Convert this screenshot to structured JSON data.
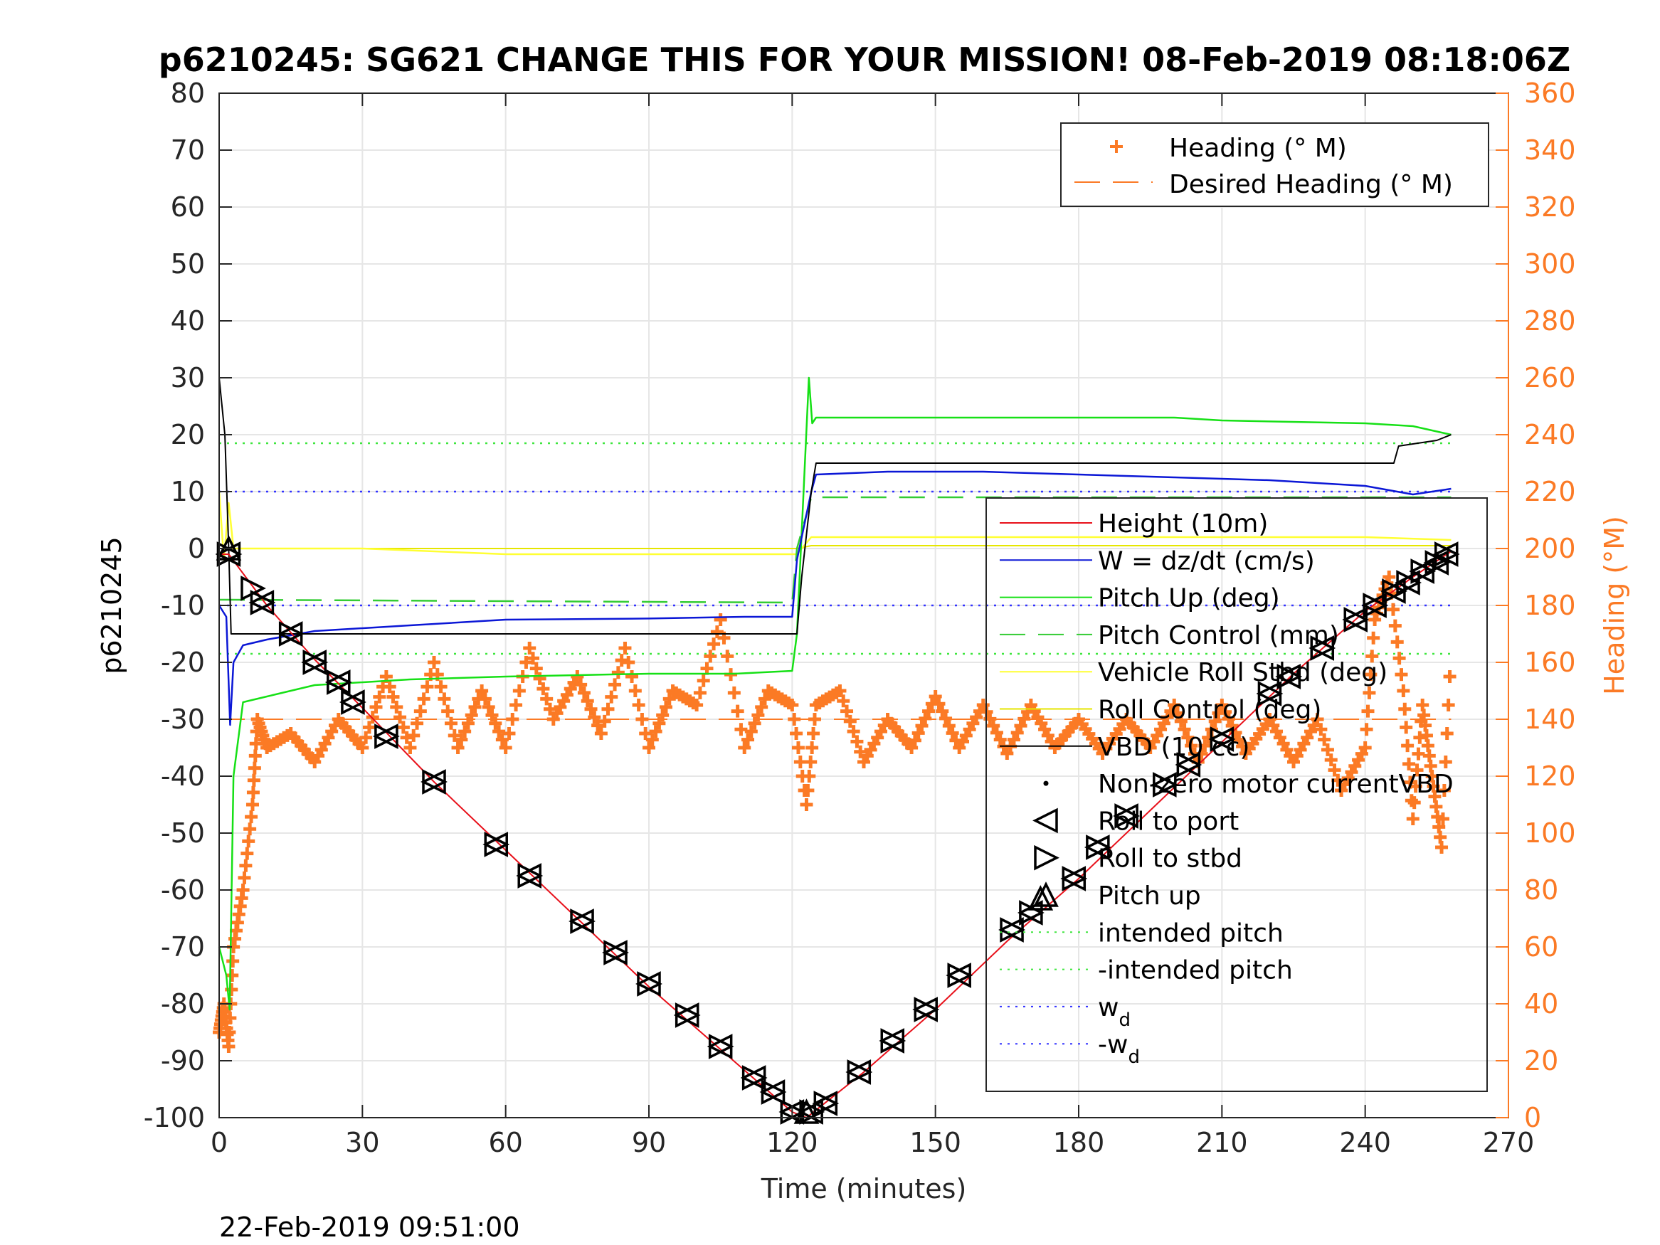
{
  "chart_data": {
    "type": "line",
    "title": "p6210245: SG621 CHANGE THIS FOR YOUR MISSION! 08-Feb-2019 08:18:06Z",
    "xlabel": "Time (minutes)",
    "ylabel": "p6210245",
    "y2label": "Heading (°M)",
    "footer": "22-Feb-2019 09:51:00",
    "xlim": [
      0,
      270
    ],
    "ylim": [
      -100,
      80
    ],
    "y2lim": [
      0,
      360
    ],
    "x_ticks": [
      "0",
      "30",
      "60",
      "90",
      "120",
      "150",
      "180",
      "210",
      "240",
      "270"
    ],
    "y_ticks": [
      "80",
      "70",
      "60",
      "50",
      "40",
      "30",
      "20",
      "10",
      "0",
      "-10",
      "-20",
      "-30",
      "-40",
      "-50",
      "-60",
      "-70",
      "-80",
      "-90",
      "-100"
    ],
    "y2_ticks": [
      "360",
      "340",
      "320",
      "300",
      "280",
      "260",
      "240",
      "220",
      "200",
      "180",
      "160",
      "140",
      "120",
      "100",
      "80",
      "60",
      "40",
      "20",
      "0"
    ],
    "grid": true,
    "colors": {
      "height": "#e8101a",
      "w": "#0b17d6",
      "pitch": "#16e016",
      "pitch_control": "#33cc33",
      "roll": "#ffff33",
      "roll_control": "#e6e600",
      "vbd": "#000000",
      "heading": "#fb7a25",
      "desired_heading": "#fb7a25",
      "intended_pitch": "#3ee63e",
      "wd": "#3333ff"
    },
    "legend_heading": {
      "position": "top-right",
      "entries": [
        "Heading (° M)",
        "Desired Heading (° M)"
      ]
    },
    "legend_main": {
      "position": "right",
      "entries": [
        "Height (10m)",
        "W = dz/dt (cm/s)",
        "Pitch Up (deg)",
        "Pitch Control (mm)",
        "Vehicle Roll Stbd (deg)",
        "Roll Control (deg)",
        "VBD (10 cc)",
        "Non-zero motor currentVBD",
        "Roll to port",
        "Roll to stbd",
        "Pitch up",
        "intended pitch",
        "-intended pitch",
        "w",
        "-w"
      ],
      "subscripts": {
        "13": "d",
        "14": "d"
      }
    },
    "series": [
      {
        "name": "Height (10m)",
        "x": [
          0,
          2,
          10,
          20,
          30,
          45,
          60,
          75,
          90,
          105,
          120,
          123,
          135,
          150,
          165,
          180,
          195,
          210,
          225,
          240,
          250,
          258
        ],
        "y": [
          -1,
          -1,
          -10,
          -19.5,
          -28,
          -41,
          -53,
          -65,
          -77,
          -88,
          -99,
          -100,
          -92,
          -81,
          -69,
          -58,
          -46,
          -34,
          -22,
          -11,
          -5,
          -0.5
        ]
      },
      {
        "name": "W = dz/dt (cm/s)",
        "x": [
          0,
          1.5,
          2.3,
          3,
          5,
          10,
          20,
          40,
          60,
          90,
          110,
          120,
          121,
          124,
          125,
          140,
          160,
          180,
          200,
          220,
          240,
          250,
          258
        ],
        "y": [
          -10,
          -12,
          -31,
          -20,
          -17,
          -16,
          -14.5,
          -13.5,
          -12.5,
          -12.3,
          -12,
          -12,
          -2,
          10,
          13,
          13.5,
          13.5,
          13,
          12.5,
          12,
          11,
          9.5,
          10.5
        ]
      },
      {
        "name": "Pitch Up (deg)",
        "x": [
          0,
          1.5,
          2.2,
          3,
          5,
          10,
          20,
          40,
          60,
          90,
          108,
          120,
          121,
          123.5,
          124.2,
          125,
          140,
          160,
          200,
          210,
          240,
          250,
          258
        ],
        "y": [
          -70,
          -75,
          -81,
          -40,
          -27,
          -26,
          -24,
          -23,
          -22.5,
          -22,
          -22,
          -21.5,
          -15,
          30,
          22,
          23,
          23,
          23,
          23,
          22.5,
          22,
          21.5,
          20
        ]
      },
      {
        "name": "Pitch Control (mm)",
        "x": [
          0,
          2,
          120,
          121,
          124,
          258
        ],
        "y": [
          -9,
          -9,
          -9.5,
          0,
          9,
          9
        ]
      },
      {
        "name": "Vehicle Roll Stbd (deg)",
        "x": [
          0,
          1,
          2,
          3,
          6,
          30,
          60,
          90,
          120,
          121,
          124,
          150,
          180,
          210,
          240,
          258
        ],
        "y": [
          10,
          -2,
          8,
          0,
          0,
          0,
          -1,
          -1,
          -1,
          -1,
          2,
          2,
          2,
          2,
          2,
          1.5
        ]
      },
      {
        "name": "Roll Control (deg)",
        "x": [
          0,
          120,
          121,
          124,
          258
        ],
        "y": [
          0,
          0,
          0,
          0.5,
          0.5
        ]
      },
      {
        "name": "VBD (10 cc)",
        "x": [
          0,
          1.2,
          2,
          2.5,
          121,
          122,
          124,
          125,
          246,
          247,
          255,
          258
        ],
        "y": [
          30,
          20,
          0,
          -15,
          -15,
          -5,
          10,
          15,
          15,
          18,
          19,
          20
        ]
      },
      {
        "name": "Heading (° M)",
        "x": [
          0,
          1,
          2,
          3,
          5,
          7,
          8,
          10,
          15,
          20,
          25,
          30,
          35,
          40,
          45,
          50,
          55,
          60,
          65,
          70,
          75,
          80,
          85,
          90,
          95,
          100,
          105,
          110,
          115,
          120,
          123,
          125,
          130,
          135,
          140,
          145,
          150,
          155,
          160,
          165,
          170,
          175,
          180,
          185,
          190,
          195,
          200,
          205,
          210,
          215,
          220,
          225,
          230,
          235,
          240,
          242,
          245,
          248,
          250,
          252,
          254,
          256,
          258
        ],
        "y": [
          30,
          40,
          25,
          60,
          80,
          110,
          140,
          130,
          135,
          125,
          140,
          130,
          155,
          130,
          160,
          130,
          150,
          130,
          165,
          140,
          155,
          135,
          165,
          130,
          150,
          145,
          175,
          130,
          150,
          145,
          110,
          145,
          150,
          125,
          140,
          130,
          148,
          130,
          145,
          128,
          145,
          130,
          140,
          128,
          140,
          130,
          145,
          125,
          145,
          128,
          140,
          125,
          140,
          115,
          130,
          175,
          190,
          150,
          105,
          145,
          120,
          95,
          165
        ]
      },
      {
        "name": "Desired Heading (° M)",
        "x": [
          0,
          258
        ],
        "y": [
          140,
          140
        ]
      },
      {
        "name": "intended pitch",
        "x": [
          0,
          258
        ],
        "y": [
          18.5,
          18.5
        ]
      },
      {
        "name": "-intended pitch",
        "x": [
          0,
          258
        ],
        "y": [
          -18.5,
          -18.5
        ]
      },
      {
        "name": "w",
        "x": [
          0,
          258
        ],
        "y": [
          10,
          10
        ]
      },
      {
        "name": "-w",
        "x": [
          0,
          258
        ],
        "y": [
          -10,
          -10
        ]
      },
      {
        "name": "Roll to port",
        "x": [
          2,
          9,
          15,
          20,
          25,
          28,
          35,
          45,
          58,
          65,
          76,
          83,
          90,
          98,
          105,
          112,
          116,
          120,
          124,
          127,
          134,
          141,
          148,
          155,
          166,
          170,
          179,
          184,
          190,
          198,
          203,
          210,
          220,
          224,
          231,
          238,
          242,
          246,
          249,
          252,
          255,
          257
        ],
        "y": [
          -1,
          -9.5,
          -15,
          -20,
          -23.5,
          -27,
          -33,
          -41,
          -52,
          -57.5,
          -65.5,
          -71,
          -76.5,
          -82,
          -87.5,
          -93,
          -95.5,
          -99,
          -99,
          -97.5,
          -92,
          -86.5,
          -81,
          -75,
          -67,
          -64,
          -58,
          -52.5,
          -47,
          -41.5,
          -38,
          -33.5,
          -25.5,
          -22.5,
          -17.5,
          -12.5,
          -10,
          -7.5,
          -6,
          -4,
          -2.5,
          -1
        ]
      },
      {
        "name": "Roll to stbd",
        "x": [
          2,
          9,
          15,
          20,
          25,
          28,
          35,
          45,
          58,
          65,
          76,
          83,
          90,
          98,
          105,
          112,
          116,
          120,
          124,
          127,
          134,
          141,
          148,
          155,
          166,
          170,
          179,
          184,
          190,
          198,
          203,
          210,
          220,
          224,
          231,
          238,
          242,
          246,
          249,
          252,
          255,
          257,
          7
        ],
        "y": [
          -1,
          -9.5,
          -15,
          -20,
          -23.5,
          -27,
          -33,
          -41,
          -52,
          -57.5,
          -65.5,
          -71,
          -76.5,
          -82,
          -87.5,
          -93,
          -95.5,
          -99,
          -99,
          -97.5,
          -92,
          -86.5,
          -81,
          -75,
          -67,
          -64,
          -58,
          -52.5,
          -47,
          -41.5,
          -38,
          -33.5,
          -25.5,
          -22.5,
          -17.5,
          -12.5,
          -10,
          -7.5,
          -6,
          -4,
          -2.5,
          -1,
          -7
        ]
      },
      {
        "name": "Pitch up",
        "x": [
          2,
          123,
          172
        ],
        "y": [
          0,
          -99,
          -61.5
        ]
      }
    ]
  }
}
